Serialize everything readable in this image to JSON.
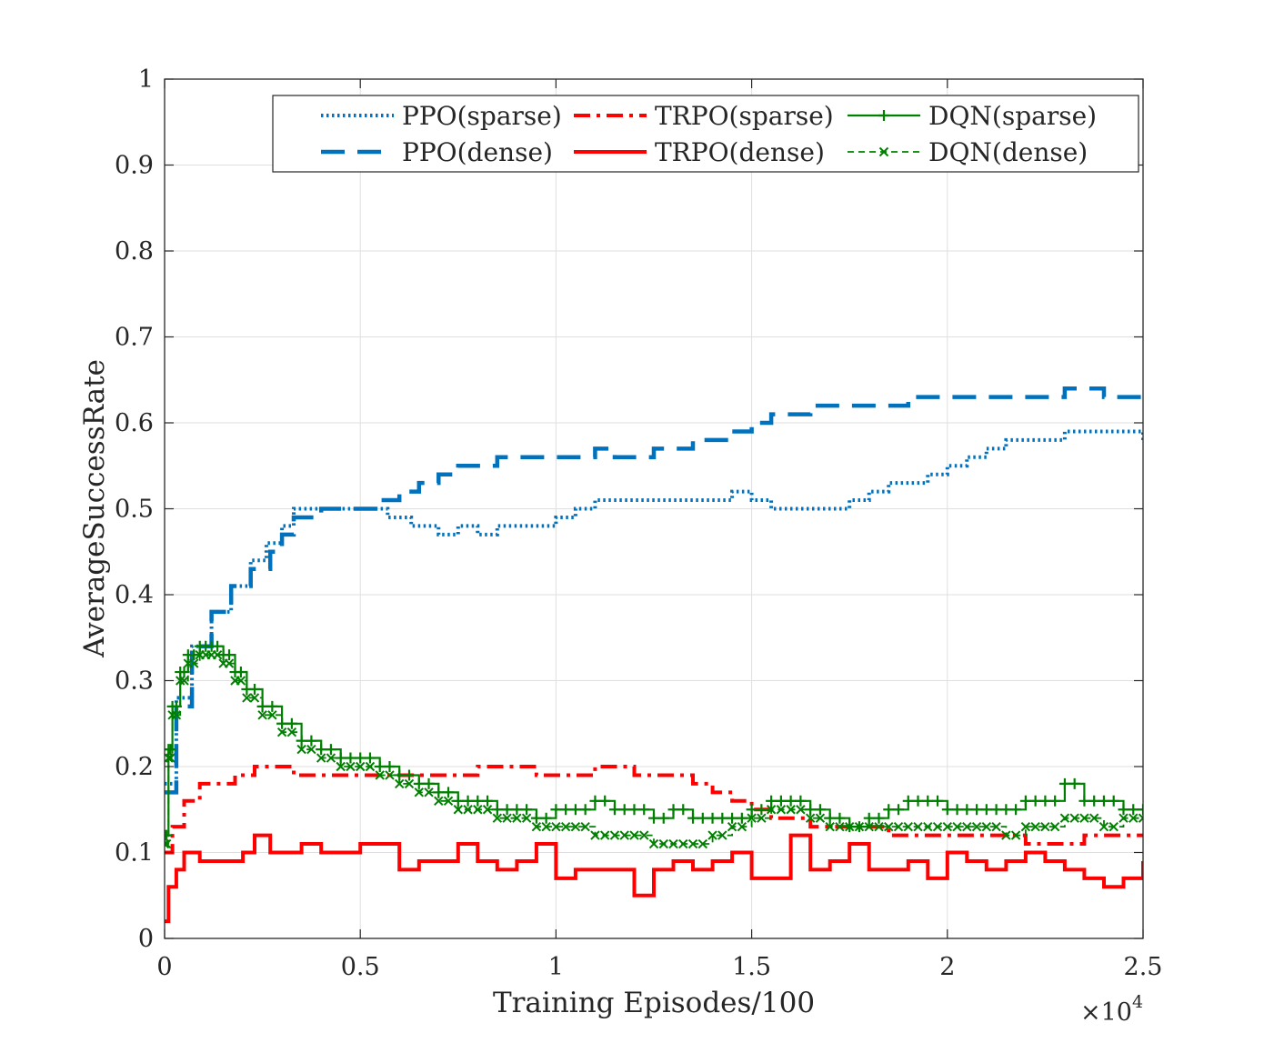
{
  "chart_data": {
    "type": "line",
    "title": "",
    "xlabel": "Training Episodes/100",
    "ylabel": "AverageSuccessRate",
    "x_multiplier_label": "×10",
    "x_multiplier_exponent": "4",
    "xlim": [
      0,
      25000
    ],
    "ylim": [
      0,
      1
    ],
    "x_ticks": [
      0,
      5000,
      10000,
      15000,
      20000,
      25000
    ],
    "x_tick_labels": [
      "0",
      "0.5",
      "1",
      "1.5",
      "2",
      "2.5"
    ],
    "y_ticks": [
      0,
      0.1,
      0.2,
      0.3,
      0.4,
      0.5,
      0.6,
      0.7,
      0.8,
      0.9,
      1
    ],
    "y_tick_labels": [
      "0",
      "0.1",
      "0.2",
      "0.3",
      "0.4",
      "0.5",
      "0.6",
      "0.7",
      "0.8",
      "0.9",
      "1"
    ],
    "grid": true,
    "legend_position": "top-right",
    "series": [
      {
        "name": "PPO(sparse)",
        "color": "#0072BD",
        "style": "dotted",
        "marker": "none",
        "x": [
          0,
          300,
          700,
          1200,
          1700,
          2200,
          2600,
          3000,
          3300,
          4000,
          5000,
          5700,
          6300,
          7000,
          7500,
          8000,
          8500,
          9000,
          9500,
          10000,
          10500,
          11000,
          12000,
          13000,
          14000,
          14500,
          15000,
          15500,
          16000,
          16500,
          17000,
          17500,
          18000,
          18500,
          19000,
          19500,
          20000,
          20500,
          21000,
          21500,
          22000,
          22500,
          23000,
          23500,
          24000,
          24500,
          25000
        ],
        "values": [
          0.18,
          0.28,
          0.34,
          0.38,
          0.41,
          0.44,
          0.46,
          0.48,
          0.5,
          0.5,
          0.5,
          0.49,
          0.48,
          0.47,
          0.48,
          0.47,
          0.48,
          0.48,
          0.48,
          0.49,
          0.5,
          0.51,
          0.51,
          0.51,
          0.51,
          0.52,
          0.51,
          0.5,
          0.5,
          0.5,
          0.5,
          0.51,
          0.52,
          0.53,
          0.53,
          0.54,
          0.55,
          0.56,
          0.57,
          0.58,
          0.58,
          0.58,
          0.59,
          0.59,
          0.59,
          0.59,
          0.58
        ]
      },
      {
        "name": "PPO(dense)",
        "color": "#0072BD",
        "style": "dashed",
        "marker": "none",
        "x": [
          0,
          300,
          700,
          1200,
          1700,
          2200,
          2700,
          3000,
          3300,
          4000,
          5000,
          5500,
          6000,
          6500,
          7000,
          7500,
          8000,
          8500,
          9000,
          9500,
          10000,
          10500,
          11000,
          11500,
          12000,
          12500,
          13000,
          13500,
          14000,
          14500,
          15000,
          15500,
          16000,
          16500,
          17000,
          17500,
          18000,
          19000,
          20000,
          21000,
          22000,
          22500,
          23000,
          23500,
          24000,
          24500,
          25000
        ],
        "values": [
          0.17,
          0.27,
          0.34,
          0.38,
          0.41,
          0.43,
          0.45,
          0.47,
          0.49,
          0.5,
          0.5,
          0.51,
          0.52,
          0.53,
          0.54,
          0.55,
          0.55,
          0.56,
          0.56,
          0.56,
          0.56,
          0.56,
          0.57,
          0.56,
          0.56,
          0.57,
          0.57,
          0.58,
          0.58,
          0.59,
          0.6,
          0.61,
          0.61,
          0.62,
          0.62,
          0.62,
          0.62,
          0.63,
          0.63,
          0.63,
          0.63,
          0.63,
          0.64,
          0.64,
          0.63,
          0.63,
          0.62
        ]
      },
      {
        "name": "TRPO(sparse)",
        "color": "#FF0000",
        "style": "dashdot",
        "marker": "none",
        "x": [
          0,
          200,
          500,
          900,
          1300,
          1800,
          2300,
          2800,
          3300,
          4000,
          5000,
          6000,
          7000,
          7500,
          8000,
          8500,
          9000,
          9500,
          10000,
          10500,
          11000,
          11500,
          12000,
          12500,
          13000,
          13500,
          14000,
          14500,
          15000,
          15500,
          16000,
          16500,
          17000,
          17500,
          18000,
          18500,
          19000,
          19500,
          20000,
          20500,
          21000,
          21500,
          22000,
          22500,
          23000,
          23500,
          24000,
          24500,
          25000
        ],
        "values": [
          0.1,
          0.13,
          0.16,
          0.18,
          0.18,
          0.19,
          0.2,
          0.2,
          0.19,
          0.19,
          0.19,
          0.19,
          0.19,
          0.19,
          0.2,
          0.2,
          0.2,
          0.19,
          0.19,
          0.19,
          0.2,
          0.2,
          0.19,
          0.19,
          0.19,
          0.18,
          0.17,
          0.16,
          0.15,
          0.14,
          0.14,
          0.13,
          0.13,
          0.13,
          0.13,
          0.12,
          0.12,
          0.12,
          0.12,
          0.12,
          0.12,
          0.12,
          0.11,
          0.11,
          0.11,
          0.12,
          0.12,
          0.12,
          0.12
        ]
      },
      {
        "name": "TRPO(dense)",
        "color": "#FF0000",
        "style": "solid",
        "marker": "none",
        "x": [
          0,
          100,
          300,
          500,
          700,
          900,
          1100,
          1300,
          1600,
          2000,
          2300,
          2700,
          3000,
          3500,
          4000,
          4500,
          5000,
          5500,
          6000,
          6500,
          7000,
          7500,
          8000,
          8500,
          9000,
          9500,
          10000,
          10500,
          11000,
          11500,
          12000,
          12500,
          13000,
          13500,
          14000,
          14500,
          15000,
          15500,
          16000,
          16500,
          17000,
          17500,
          18000,
          18500,
          19000,
          19500,
          20000,
          20500,
          21000,
          21500,
          22000,
          22500,
          23000,
          23500,
          24000,
          24500,
          25000
        ],
        "values": [
          0.02,
          0.06,
          0.08,
          0.1,
          0.1,
          0.09,
          0.09,
          0.09,
          0.09,
          0.1,
          0.12,
          0.1,
          0.1,
          0.11,
          0.1,
          0.1,
          0.11,
          0.11,
          0.08,
          0.09,
          0.09,
          0.11,
          0.09,
          0.08,
          0.09,
          0.11,
          0.07,
          0.08,
          0.08,
          0.08,
          0.05,
          0.08,
          0.09,
          0.08,
          0.09,
          0.1,
          0.07,
          0.07,
          0.12,
          0.08,
          0.09,
          0.11,
          0.08,
          0.08,
          0.09,
          0.07,
          0.1,
          0.09,
          0.08,
          0.09,
          0.1,
          0.09,
          0.08,
          0.07,
          0.06,
          0.07,
          0.09
        ]
      },
      {
        "name": "DQN(sparse)",
        "color": "#008000",
        "style": "solid",
        "marker": "plus",
        "x": [
          0,
          100,
          200,
          400,
          600,
          900,
          1200,
          1500,
          1800,
          2100,
          2500,
          3000,
          3500,
          4000,
          4500,
          5000,
          5500,
          6000,
          6500,
          7000,
          7500,
          8000,
          8500,
          9000,
          9500,
          10000,
          10500,
          11000,
          11500,
          12000,
          12500,
          13000,
          13500,
          14000,
          14500,
          15000,
          15500,
          16000,
          16500,
          17000,
          17500,
          18000,
          18500,
          19000,
          19500,
          20000,
          20500,
          21000,
          21500,
          22000,
          22500,
          23000,
          23500,
          24000,
          24500,
          25000
        ],
        "values": [
          0.12,
          0.22,
          0.27,
          0.31,
          0.33,
          0.34,
          0.34,
          0.33,
          0.31,
          0.29,
          0.27,
          0.25,
          0.23,
          0.22,
          0.21,
          0.21,
          0.2,
          0.19,
          0.18,
          0.17,
          0.16,
          0.16,
          0.15,
          0.15,
          0.14,
          0.15,
          0.15,
          0.16,
          0.15,
          0.15,
          0.14,
          0.15,
          0.14,
          0.14,
          0.14,
          0.15,
          0.16,
          0.16,
          0.15,
          0.14,
          0.13,
          0.14,
          0.15,
          0.16,
          0.16,
          0.15,
          0.15,
          0.15,
          0.15,
          0.16,
          0.16,
          0.18,
          0.16,
          0.16,
          0.15,
          0.15
        ]
      },
      {
        "name": "DQN(dense)",
        "color": "#008000",
        "style": "dashed",
        "marker": "x",
        "x": [
          0,
          100,
          200,
          400,
          600,
          900,
          1200,
          1500,
          1800,
          2100,
          2500,
          3000,
          3500,
          4000,
          4500,
          5000,
          5500,
          6000,
          6500,
          7000,
          7500,
          8000,
          8500,
          9000,
          9500,
          10000,
          10500,
          11000,
          11500,
          12000,
          12500,
          13000,
          13500,
          14000,
          14500,
          15000,
          15500,
          16000,
          16500,
          17000,
          17500,
          18000,
          18500,
          19000,
          19500,
          20000,
          20500,
          21000,
          21500,
          22000,
          22500,
          23000,
          23500,
          24000,
          24500,
          25000
        ],
        "values": [
          0.11,
          0.21,
          0.26,
          0.3,
          0.32,
          0.33,
          0.33,
          0.32,
          0.3,
          0.28,
          0.26,
          0.24,
          0.22,
          0.21,
          0.2,
          0.2,
          0.19,
          0.18,
          0.17,
          0.16,
          0.15,
          0.15,
          0.14,
          0.14,
          0.13,
          0.13,
          0.13,
          0.12,
          0.12,
          0.12,
          0.11,
          0.11,
          0.11,
          0.12,
          0.13,
          0.14,
          0.15,
          0.15,
          0.14,
          0.13,
          0.13,
          0.13,
          0.13,
          0.13,
          0.13,
          0.13,
          0.13,
          0.13,
          0.12,
          0.13,
          0.13,
          0.14,
          0.14,
          0.13,
          0.14,
          0.14
        ]
      }
    ]
  }
}
